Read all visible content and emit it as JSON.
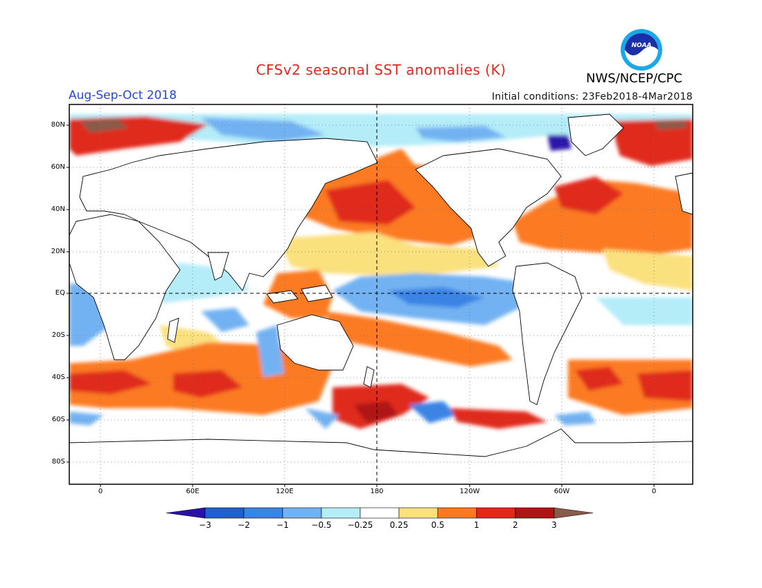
{
  "title": "CFSv2 seasonal SST anomalies (K)",
  "agency": "NWS/NCEP/CPC",
  "logo_text": "NOAA",
  "period": "Aug-Sep-Oct 2018",
  "initial_conditions": "Initial conditions: 23Feb2018-4Mar2018",
  "lat_labels": [
    "80N",
    "60N",
    "40N",
    "20N",
    "EQ",
    "20S",
    "40S",
    "60S",
    "80S"
  ],
  "lon_labels": [
    "0",
    "60E",
    "120E",
    "180",
    "120W",
    "60W",
    "0"
  ],
  "colorbar": {
    "labels": [
      "−3",
      "−2",
      "−1",
      "−0.5",
      "−0.25",
      "0.25",
      "0.5",
      "1",
      "2",
      "3"
    ],
    "colors": [
      "#2a12a8",
      "#1f5fd0",
      "#3a84e6",
      "#72b2f2",
      "#b4ecf8",
      "#ffffff",
      "#fbe07e",
      "#fb7a20",
      "#e0291a",
      "#b01414",
      "#8a5a4a"
    ]
  }
}
